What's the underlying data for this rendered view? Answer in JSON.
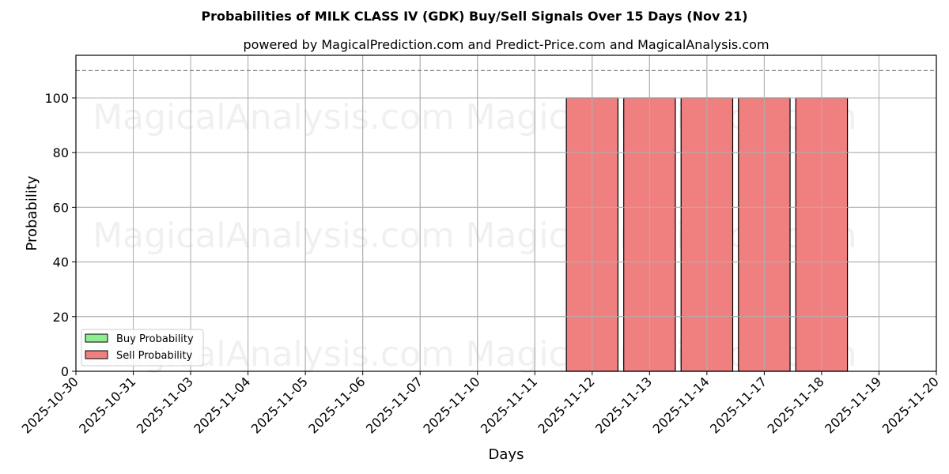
{
  "chart_data": {
    "type": "bar",
    "title": "Probabilities of MILK CLASS IV (GDK) Buy/Sell Signals Over 15 Days (Nov 21)",
    "subtitle": "powered by MagicalPrediction.com and Predict-Price.com and MagicalAnalysis.com",
    "xlabel": "Days",
    "ylabel": "Probability",
    "ylim": [
      0,
      115.6
    ],
    "yticks": [
      0,
      20,
      40,
      60,
      80,
      100
    ],
    "reference_line": {
      "y": 110,
      "style": "dashed",
      "color": "#808080"
    },
    "grid": true,
    "legend_position": "lower left",
    "categories": [
      "2025-10-30",
      "2025-10-31",
      "2025-11-03",
      "2025-11-04",
      "2025-11-05",
      "2025-11-06",
      "2025-11-07",
      "2025-11-10",
      "2025-11-11",
      "2025-11-12",
      "2025-11-13",
      "2025-11-14",
      "2025-11-17",
      "2025-11-18",
      "2025-11-19",
      "2025-11-20"
    ],
    "series": [
      {
        "name": "Buy Probability",
        "color": "#90ee90",
        "values": [
          0,
          0,
          0,
          0,
          0,
          0,
          0,
          0,
          0,
          0,
          0,
          0,
          0,
          0,
          0,
          0
        ]
      },
      {
        "name": "Sell Probability",
        "color": "#f08080",
        "values": [
          0,
          0,
          0,
          0,
          0,
          0,
          0,
          0,
          0,
          100,
          100,
          100,
          100,
          100,
          0,
          0
        ]
      }
    ],
    "watermarks": [
      "MagicalAnalysis.com",
      "MagicalPrediction.com"
    ]
  }
}
